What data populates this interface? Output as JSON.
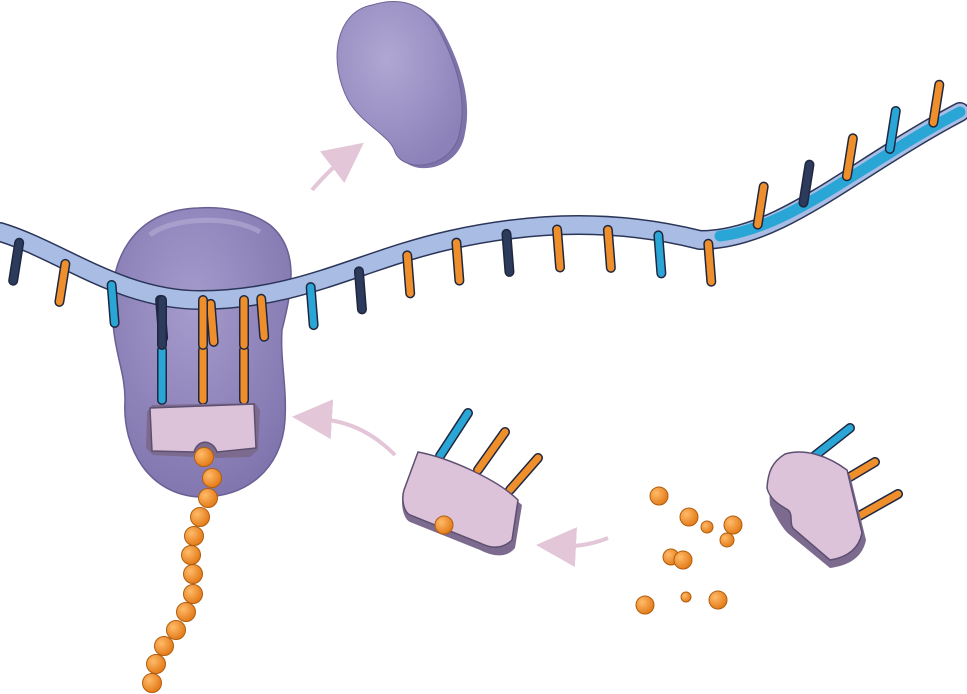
{
  "diagram": {
    "colors": {
      "strand": "#a9bde4",
      "strand_outline": "#2b3558",
      "strand_tail": "#2aa6d6",
      "ribosome": "#8d82b8",
      "ribosome_light": "#aca2cf",
      "released_subunit": "#9c92c4",
      "trna_body": "#d9bfd8",
      "trna_shadow": "#7c6b8f",
      "base_orange": "#ef8f2b",
      "base_cyan": "#2aa6d6",
      "base_navy": "#2c3a5c",
      "amino_acid": "#f0922d",
      "arrow": "#e3c6d7"
    },
    "mrna_bases": [
      "navy",
      "orange",
      "cyan",
      "navy",
      "orange",
      "orange",
      "cyan",
      "navy",
      "orange",
      "orange",
      "navy",
      "orange",
      "orange",
      "cyan",
      "orange",
      "orange",
      "navy",
      "orange",
      "cyan",
      "orange"
    ],
    "anticodon_bound": [
      "cyan",
      "orange",
      "orange"
    ],
    "anticodon_free_1": [
      "cyan",
      "orange",
      "orange"
    ],
    "anticodon_free_2": [
      "cyan",
      "orange",
      "orange"
    ],
    "polypeptide_length": 12,
    "free_amino_acids": 10,
    "arrows": [
      "subunit-release",
      "trna-entry",
      "amino-acid-loading"
    ]
  }
}
